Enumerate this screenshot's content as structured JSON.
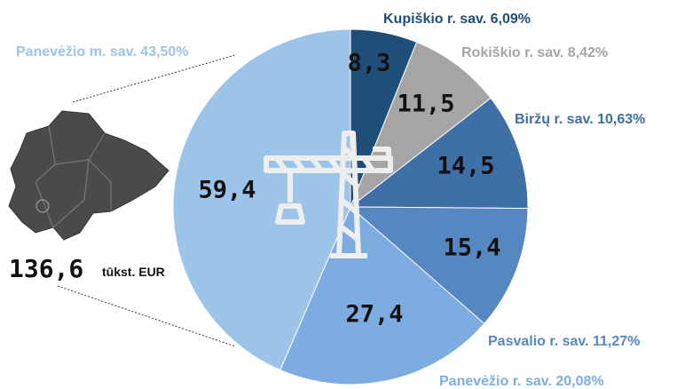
{
  "chart_data": {
    "type": "pie",
    "categories": [
      "Kupiškio r. sav. 6,09%",
      "Rokiškio r. sav. 8,42%",
      "Biržų r. sav. 10,63%",
      "Pasvalio r. sav. 11,27%",
      "Panevėžio r. sav. 20,08%",
      "Panevėžio m. sav. 43,50%"
    ],
    "values": [
      8.3,
      11.5,
      14.5,
      15.4,
      27.4,
      59.4
    ],
    "value_labels": [
      "8,3",
      "11,5",
      "14,5",
      "15,4",
      "27,4",
      "59,4"
    ],
    "colors": [
      "#1f4e79",
      "#a5a5a5",
      "#3e6fa6",
      "#5587c0",
      "#7dade0",
      "#9cc3e8"
    ],
    "label_colors": [
      "#1f4e79",
      "#a5a5a5",
      "#3e6fa6",
      "#5587c0",
      "#7dade0",
      "#9cc3e8"
    ],
    "total": "136,6",
    "unit": "tūkst. EUR"
  }
}
